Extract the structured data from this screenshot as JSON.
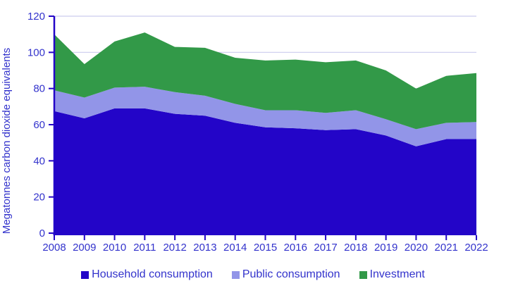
{
  "chart_data": {
    "type": "area",
    "stacked": true,
    "title": "",
    "xlabel": "",
    "ylabel": "Megatonnes carbon dioxide equivalents",
    "x": [
      "2008",
      "2009",
      "2010",
      "2011",
      "2012",
      "2013",
      "2014",
      "2015",
      "2016",
      "2017",
      "2018",
      "2019",
      "2020",
      "2021",
      "2022"
    ],
    "series": [
      {
        "name": "Household consumption",
        "color": "#2305C8",
        "values": [
          67.5,
          63.5,
          69,
          69,
          66,
          65,
          61,
          58.5,
          58,
          57,
          57.5,
          54,
          48,
          52,
          52
        ]
      },
      {
        "name": "Public consumption",
        "color": "#9295E8",
        "values": [
          11.5,
          11.5,
          11.5,
          12,
          12,
          11,
          10.5,
          9.5,
          10,
          9.5,
          10.5,
          9,
          9.5,
          9,
          9.5
        ]
      },
      {
        "name": "Investment",
        "color": "#329948",
        "values": [
          31,
          18.5,
          25.5,
          30,
          25,
          26.5,
          25.5,
          27.5,
          28,
          28,
          27.5,
          27,
          22.5,
          26,
          27
        ]
      }
    ],
    "ylim": [
      0,
      120
    ],
    "ytick_interval": 20,
    "grid": true,
    "legend_position": "bottom"
  },
  "colors": {
    "axis_text": "#3333CC",
    "gridline": "#CCCCEE",
    "axis_line": "#2305C8",
    "background": "#FFFFFF"
  }
}
